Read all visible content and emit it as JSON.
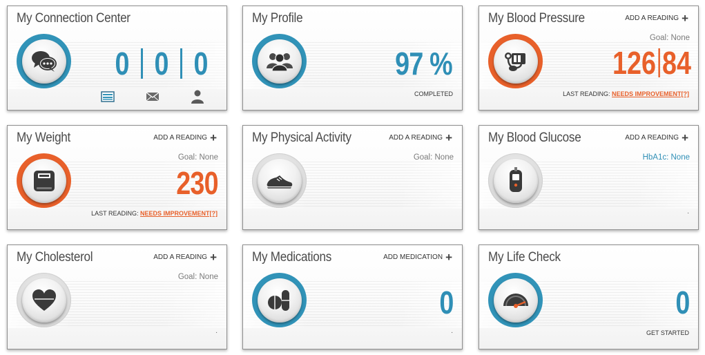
{
  "colors": {
    "accent_blue": "#3193b8",
    "accent_orange": "#e8602a",
    "text": "#4a4a4a"
  },
  "connection": {
    "title": "My Connection Center",
    "counts": [
      "0",
      "0",
      "0"
    ],
    "icons": [
      "message-board-icon",
      "envelope-icon",
      "person-icon"
    ]
  },
  "profile": {
    "title": "My Profile",
    "value": "97 %",
    "footer": "COMPLETED"
  },
  "blood_pressure": {
    "title": "My Blood Pressure",
    "add": "ADD A READING",
    "goal": "Goal: None",
    "systolic": "126",
    "diastolic": "84",
    "footer_label": "LAST READING:",
    "footer_status": "NEEDS IMPROVEMENT[?]"
  },
  "weight": {
    "title": "My Weight",
    "add": "ADD A READING",
    "goal": "Goal: None",
    "value": "230",
    "footer_label": "LAST READING:",
    "footer_status": "NEEDS IMPROVEMENT[?]"
  },
  "activity": {
    "title": "My Physical Activity",
    "add": "ADD A READING",
    "goal": "Goal: None"
  },
  "glucose": {
    "title": "My Blood Glucose",
    "add": "ADD A READING",
    "goal": "HbA1c: None",
    "footer": "."
  },
  "cholesterol": {
    "title": "My Cholesterol",
    "add": "ADD A READING",
    "goal": "Goal: None",
    "footer": "."
  },
  "medications": {
    "title": "My Medications",
    "add": "ADD MEDICATION",
    "value": "0",
    "footer": "."
  },
  "life_check": {
    "title": "My Life Check",
    "value": "0",
    "footer": "GET STARTED"
  }
}
